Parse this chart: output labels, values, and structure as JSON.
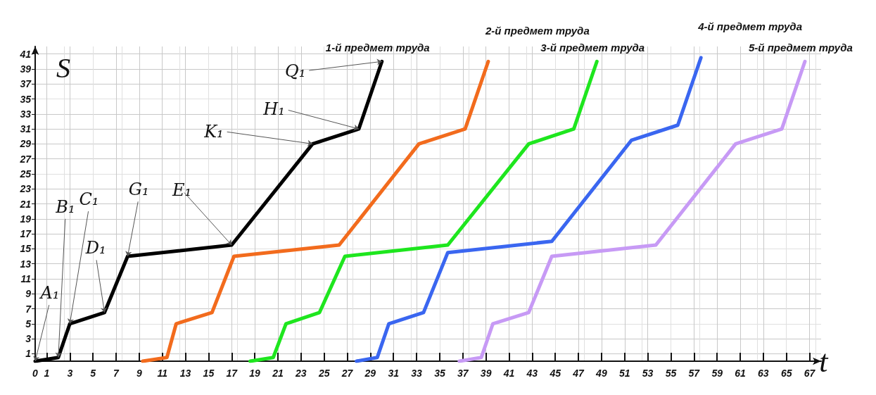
{
  "chart_data": {
    "type": "line",
    "xlabel": "t",
    "ylabel": "S",
    "xlim": [
      0,
      68
    ],
    "ylim": [
      0,
      42
    ],
    "xticks": [
      0,
      1,
      3,
      5,
      7,
      9,
      11,
      13,
      15,
      17,
      19,
      21,
      23,
      25,
      27,
      29,
      31,
      33,
      35,
      37,
      39,
      41,
      43,
      45,
      47,
      49,
      51,
      53,
      55,
      57,
      59,
      61,
      63,
      65,
      67
    ],
    "yticks": [
      1,
      3,
      5,
      7,
      9,
      11,
      13,
      15,
      17,
      19,
      21,
      23,
      25,
      27,
      29,
      31,
      33,
      35,
      37,
      39,
      41
    ],
    "grid": true,
    "legend": false,
    "marker": "none",
    "line_style": "solid",
    "series": [
      {
        "name": "1-й предмет труда",
        "color": "#000000",
        "x": [
          0,
          2,
          3,
          6,
          8,
          17,
          24,
          28,
          30
        ],
        "values": [
          0,
          0.5,
          5,
          6.5,
          14,
          15.5,
          29,
          31,
          40
        ]
      },
      {
        "name": "2-й предмет труда",
        "color": "#f26b1d",
        "x": [
          9.3,
          11.4,
          12.2,
          15.3,
          17.2,
          26.3,
          33.2,
          37.2,
          39.2
        ],
        "values": [
          0,
          0.5,
          5,
          6.5,
          14,
          15.5,
          29,
          31,
          40
        ]
      },
      {
        "name": "3-й предмет труда",
        "color": "#1ee61e",
        "x": [
          18.6,
          20.6,
          21.7,
          24.6,
          26.8,
          35.7,
          42.7,
          46.6,
          48.6
        ],
        "values": [
          0,
          0.5,
          5,
          6.5,
          14,
          15.5,
          29,
          31,
          40
        ]
      },
      {
        "name": "4-й предмет труда",
        "color": "#3a66f0",
        "x": [
          27.8,
          29.6,
          30.6,
          33.6,
          35.7,
          44.7,
          51.6,
          55.6,
          57.6
        ],
        "values": [
          0,
          0.5,
          5,
          6.5,
          14.5,
          16,
          29.5,
          31.5,
          40.5
        ]
      },
      {
        "name": "5-й предмет труда",
        "color": "#c79af5",
        "x": [
          36.7,
          38.6,
          39.6,
          42.7,
          44.7,
          53.7,
          60.6,
          64.6,
          66.6
        ],
        "values": [
          0,
          0.5,
          5,
          6.5,
          14,
          15.5,
          29,
          31,
          40
        ]
      }
    ],
    "annotations": [
      {
        "text": "A₁",
        "x": 0,
        "y": 0
      },
      {
        "text": "B₁",
        "x": 2,
        "y": 0.5
      },
      {
        "text": "C₁",
        "x": 3,
        "y": 5
      },
      {
        "text": "D₁",
        "x": 6,
        "y": 6.5
      },
      {
        "text": "G₁",
        "x": 8,
        "y": 14
      },
      {
        "text": "E₁",
        "x": 17,
        "y": 15.5
      },
      {
        "text": "K₁",
        "x": 24,
        "y": 29
      },
      {
        "text": "H₁",
        "x": 28,
        "y": 31
      },
      {
        "text": "Q₁",
        "x": 30,
        "y": 40
      }
    ]
  }
}
